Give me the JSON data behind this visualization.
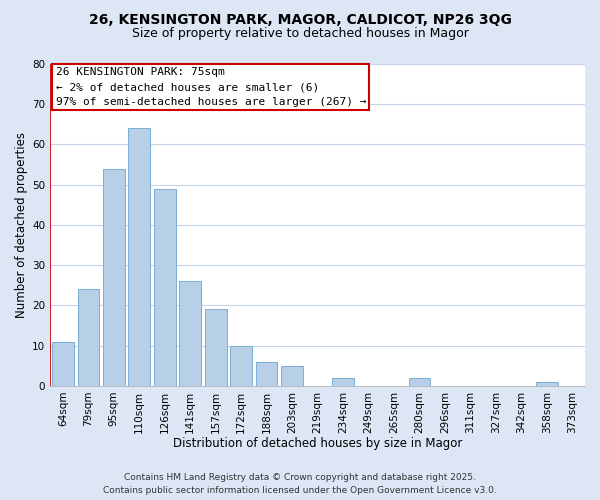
{
  "title": "26, KENSINGTON PARK, MAGOR, CALDICOT, NP26 3QG",
  "subtitle": "Size of property relative to detached houses in Magor",
  "xlabel": "Distribution of detached houses by size in Magor",
  "ylabel": "Number of detached properties",
  "bar_labels": [
    "64sqm",
    "79sqm",
    "95sqm",
    "110sqm",
    "126sqm",
    "141sqm",
    "157sqm",
    "172sqm",
    "188sqm",
    "203sqm",
    "219sqm",
    "234sqm",
    "249sqm",
    "265sqm",
    "280sqm",
    "296sqm",
    "311sqm",
    "327sqm",
    "342sqm",
    "358sqm",
    "373sqm"
  ],
  "bar_values": [
    11,
    24,
    54,
    64,
    49,
    26,
    19,
    10,
    6,
    5,
    0,
    2,
    0,
    0,
    2,
    0,
    0,
    0,
    0,
    1,
    0
  ],
  "bar_color": "#b8cfe8",
  "bar_edge_color": "#7aadd4",
  "ylim": [
    0,
    80
  ],
  "yticks": [
    0,
    10,
    20,
    30,
    40,
    50,
    60,
    70,
    80
  ],
  "vline_color": "#cc0000",
  "annotation_title": "26 KENSINGTON PARK: 75sqm",
  "annotation_line1": "← 2% of detached houses are smaller (6)",
  "annotation_line2": "97% of semi-detached houses are larger (267) →",
  "annotation_box_color": "#ffffff",
  "annotation_border_color": "#cc0000",
  "footer1": "Contains HM Land Registry data © Crown copyright and database right 2025.",
  "footer2": "Contains public sector information licensed under the Open Government Licence v3.0.",
  "bg_color": "#dce6f5",
  "plot_bg_color": "#ffffff",
  "grid_color": "#c8d4e8",
  "title_fontsize": 10,
  "subtitle_fontsize": 9,
  "axis_label_fontsize": 8.5,
  "tick_fontsize": 7.5,
  "annotation_fontsize": 8,
  "footer_fontsize": 6.5
}
